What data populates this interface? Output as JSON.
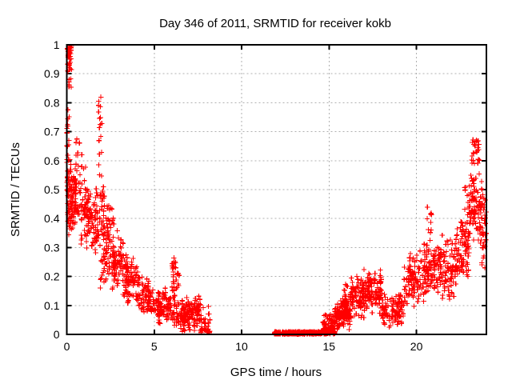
{
  "page": {
    "background": "#ffffff",
    "text_color": "#000000"
  },
  "chart_data": {
    "type": "scatter",
    "title": "Day 346 of 2011, SRMTID for receiver kokb",
    "xlabel": "GPS time / hours",
    "ylabel": "SRMTID / TECUs",
    "xlim": [
      0,
      24
    ],
    "ylim": [
      0,
      1
    ],
    "x_ticks": [
      0,
      5,
      10,
      15,
      20
    ],
    "x_tick_labels": [
      "0",
      "5",
      "10",
      "15",
      "20"
    ],
    "y_ticks": [
      0,
      0.1,
      0.2,
      0.3,
      0.4,
      0.5,
      0.6,
      0.7,
      0.8,
      0.9,
      1
    ],
    "y_tick_labels": [
      "0",
      "0.1",
      "0.2",
      "0.3",
      "0.4",
      "0.5",
      "0.6",
      "0.7",
      "0.8",
      "0.9",
      "1"
    ],
    "grid": true,
    "grid_style": "dashed",
    "grid_color": "#b0b0b0",
    "axis_color": "#000000",
    "legend": "none",
    "marker": "plus",
    "marker_color": "#ff0000",
    "seed": 1337,
    "series": [
      {
        "name": "SRMTID",
        "color": "#ff0000",
        "cloud_segments": [
          {
            "x0": 0.02,
            "x1": 0.28,
            "n": 45,
            "y_min": 0.78,
            "y_max": 0.995,
            "dist": "high"
          },
          {
            "x0": 0.0,
            "x1": 0.15,
            "n": 25,
            "y_min": 0.42,
            "y_max": 0.78,
            "dist": "uniform"
          },
          {
            "x0": 0.03,
            "x1": 0.6,
            "n": 80,
            "y_min": 0.36,
            "y_max": 0.62,
            "dist": "mid"
          },
          {
            "x0": 0.1,
            "x1": 1.2,
            "n": 90,
            "y_min": 0.3,
            "y_max": 0.55,
            "dist": "mid"
          },
          {
            "x0": 0.5,
            "x1": 1.1,
            "n": 12,
            "y_min": 0.55,
            "y_max": 0.68,
            "dist": "uniform"
          },
          {
            "x0": 1.0,
            "x1": 1.7,
            "n": 70,
            "y_min": 0.27,
            "y_max": 0.52,
            "dist": "mid"
          },
          {
            "x0": 1.6,
            "x1": 2.15,
            "n": 55,
            "y_min": 0.28,
            "y_max": 0.6,
            "dist": "mid"
          },
          {
            "x0": 1.8,
            "x1": 2.1,
            "n": 14,
            "y_min": 0.6,
            "y_max": 0.82,
            "dist": "uniform"
          },
          {
            "x0": 1.9,
            "x1": 2.45,
            "n": 25,
            "y_min": 0.15,
            "y_max": 0.3,
            "dist": "uniform"
          },
          {
            "x0": 2.1,
            "x1": 2.7,
            "n": 60,
            "y_min": 0.2,
            "y_max": 0.47,
            "dist": "mid"
          },
          {
            "x0": 2.6,
            "x1": 3.3,
            "n": 65,
            "y_min": 0.15,
            "y_max": 0.38,
            "dist": "mid"
          },
          {
            "x0": 3.35,
            "x1": 3.55,
            "n": 12,
            "y_min": 0.13,
            "y_max": 0.3,
            "dist": "uniform"
          },
          {
            "x0": 3.2,
            "x1": 4.1,
            "n": 75,
            "y_min": 0.1,
            "y_max": 0.28,
            "dist": "mid"
          },
          {
            "x0": 4.0,
            "x1": 4.8,
            "n": 65,
            "y_min": 0.07,
            "y_max": 0.22,
            "dist": "mid"
          },
          {
            "x0": 4.6,
            "x1": 5.4,
            "n": 60,
            "y_min": 0.05,
            "y_max": 0.17,
            "dist": "mid"
          },
          {
            "x0": 5.2,
            "x1": 6.0,
            "n": 60,
            "y_min": 0.03,
            "y_max": 0.14,
            "dist": "mid"
          },
          {
            "x0": 5.45,
            "x1": 5.65,
            "n": 8,
            "y_min": 0.12,
            "y_max": 0.16,
            "dist": "uniform"
          },
          {
            "x0": 6.02,
            "x1": 6.42,
            "n": 35,
            "y_min": 0.1,
            "y_max": 0.295,
            "dist": "mid"
          },
          {
            "x0": 6.0,
            "x1": 6.6,
            "n": 30,
            "y_min": 0.02,
            "y_max": 0.12,
            "dist": "mid"
          },
          {
            "x0": 6.5,
            "x1": 7.35,
            "n": 110,
            "y_min": 0.005,
            "y_max": 0.13,
            "dist": "mid"
          },
          {
            "x0": 7.35,
            "x1": 7.62,
            "n": 30,
            "y_min": 0.01,
            "y_max": 0.17,
            "dist": "mid"
          },
          {
            "x0": 7.6,
            "x1": 8.2,
            "n": 45,
            "y_min": 0.005,
            "y_max": 0.12,
            "dist": "low"
          },
          {
            "x0": 11.87,
            "x1": 12.22,
            "n": 60,
            "y_min": 0.001,
            "y_max": 0.009,
            "dist": "uniform"
          },
          {
            "x0": 12.3,
            "x1": 14.42,
            "n": 330,
            "y_min": 0.001,
            "y_max": 0.009,
            "dist": "uniform"
          },
          {
            "x0": 14.47,
            "x1": 14.62,
            "n": 28,
            "y_min": 0.001,
            "y_max": 0.009,
            "dist": "uniform"
          },
          {
            "x0": 14.65,
            "x1": 15.35,
            "n": 130,
            "y_min": 0.002,
            "y_max": 0.09,
            "dist": "low"
          },
          {
            "x0": 15.3,
            "x1": 16.25,
            "n": 140,
            "y_min": 0.01,
            "y_max": 0.14,
            "dist": "mid"
          },
          {
            "x0": 15.85,
            "x1": 16.1,
            "n": 8,
            "y_min": 0.13,
            "y_max": 0.175,
            "dist": "uniform"
          },
          {
            "x0": 16.2,
            "x1": 17.05,
            "n": 95,
            "y_min": 0.05,
            "y_max": 0.21,
            "dist": "mid"
          },
          {
            "x0": 17.0,
            "x1": 18.0,
            "n": 110,
            "y_min": 0.07,
            "y_max": 0.23,
            "dist": "mid"
          },
          {
            "x0": 18.0,
            "x1": 19.25,
            "n": 110,
            "y_min": 0.02,
            "y_max": 0.15,
            "dist": "mid"
          },
          {
            "x0": 19.25,
            "x1": 19.5,
            "n": 12,
            "y_min": 0.1,
            "y_max": 0.28,
            "dist": "uniform"
          },
          {
            "x0": 19.5,
            "x1": 20.45,
            "n": 90,
            "y_min": 0.08,
            "y_max": 0.3,
            "dist": "mid"
          },
          {
            "x0": 20.4,
            "x1": 21.2,
            "n": 85,
            "y_min": 0.12,
            "y_max": 0.35,
            "dist": "mid"
          },
          {
            "x0": 20.6,
            "x1": 20.95,
            "n": 9,
            "y_min": 0.35,
            "y_max": 0.465,
            "dist": "uniform"
          },
          {
            "x0": 21.2,
            "x1": 22.25,
            "n": 100,
            "y_min": 0.1,
            "y_max": 0.35,
            "dist": "mid"
          },
          {
            "x0": 22.2,
            "x1": 23.0,
            "n": 95,
            "y_min": 0.17,
            "y_max": 0.42,
            "dist": "mid"
          },
          {
            "x0": 22.75,
            "x1": 23.0,
            "n": 8,
            "y_min": 0.42,
            "y_max": 0.52,
            "dist": "uniform"
          },
          {
            "x0": 23.0,
            "x1": 23.8,
            "n": 90,
            "y_min": 0.32,
            "y_max": 0.58,
            "dist": "mid"
          },
          {
            "x0": 23.15,
            "x1": 23.6,
            "n": 25,
            "y_min": 0.55,
            "y_max": 0.672,
            "dist": "high"
          },
          {
            "x0": 23.6,
            "x1": 24.0,
            "n": 40,
            "y_min": 0.22,
            "y_max": 0.5,
            "dist": "mid"
          }
        ]
      }
    ]
  }
}
